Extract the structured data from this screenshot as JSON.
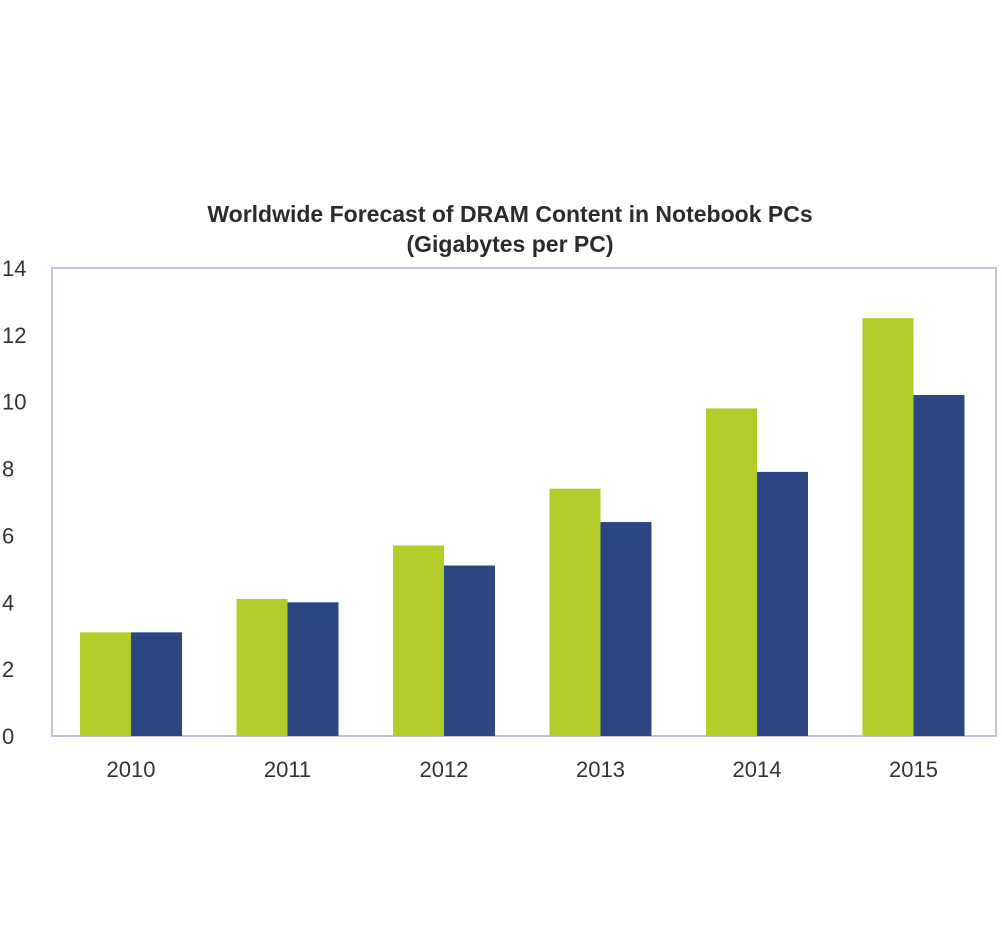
{
  "chart_data": {
    "type": "bar",
    "title": "Worldwide Forecast of DRAM Content in Notebook PCs",
    "subtitle": "(Gigabytes per PC)",
    "xlabel": "",
    "ylabel": "",
    "categories": [
      "2010",
      "2011",
      "2012",
      "2013",
      "2014",
      "2015"
    ],
    "ylim": [
      0,
      14
    ],
    "yticks": [
      0,
      2,
      4,
      6,
      8,
      10,
      12,
      14
    ],
    "grid": false,
    "legend": "none",
    "series": [
      {
        "values": [
          3.1,
          4.1,
          5.7,
          7.4,
          9.8,
          12.5
        ],
        "color": "#b3cc2a"
      },
      {
        "values": [
          3.1,
          4.0,
          5.1,
          6.4,
          7.9,
          10.2
        ],
        "color": "#2b4680"
      }
    ],
    "colors": {
      "plot_border": "#c8c0d8",
      "text": "#2b2b2b"
    }
  }
}
